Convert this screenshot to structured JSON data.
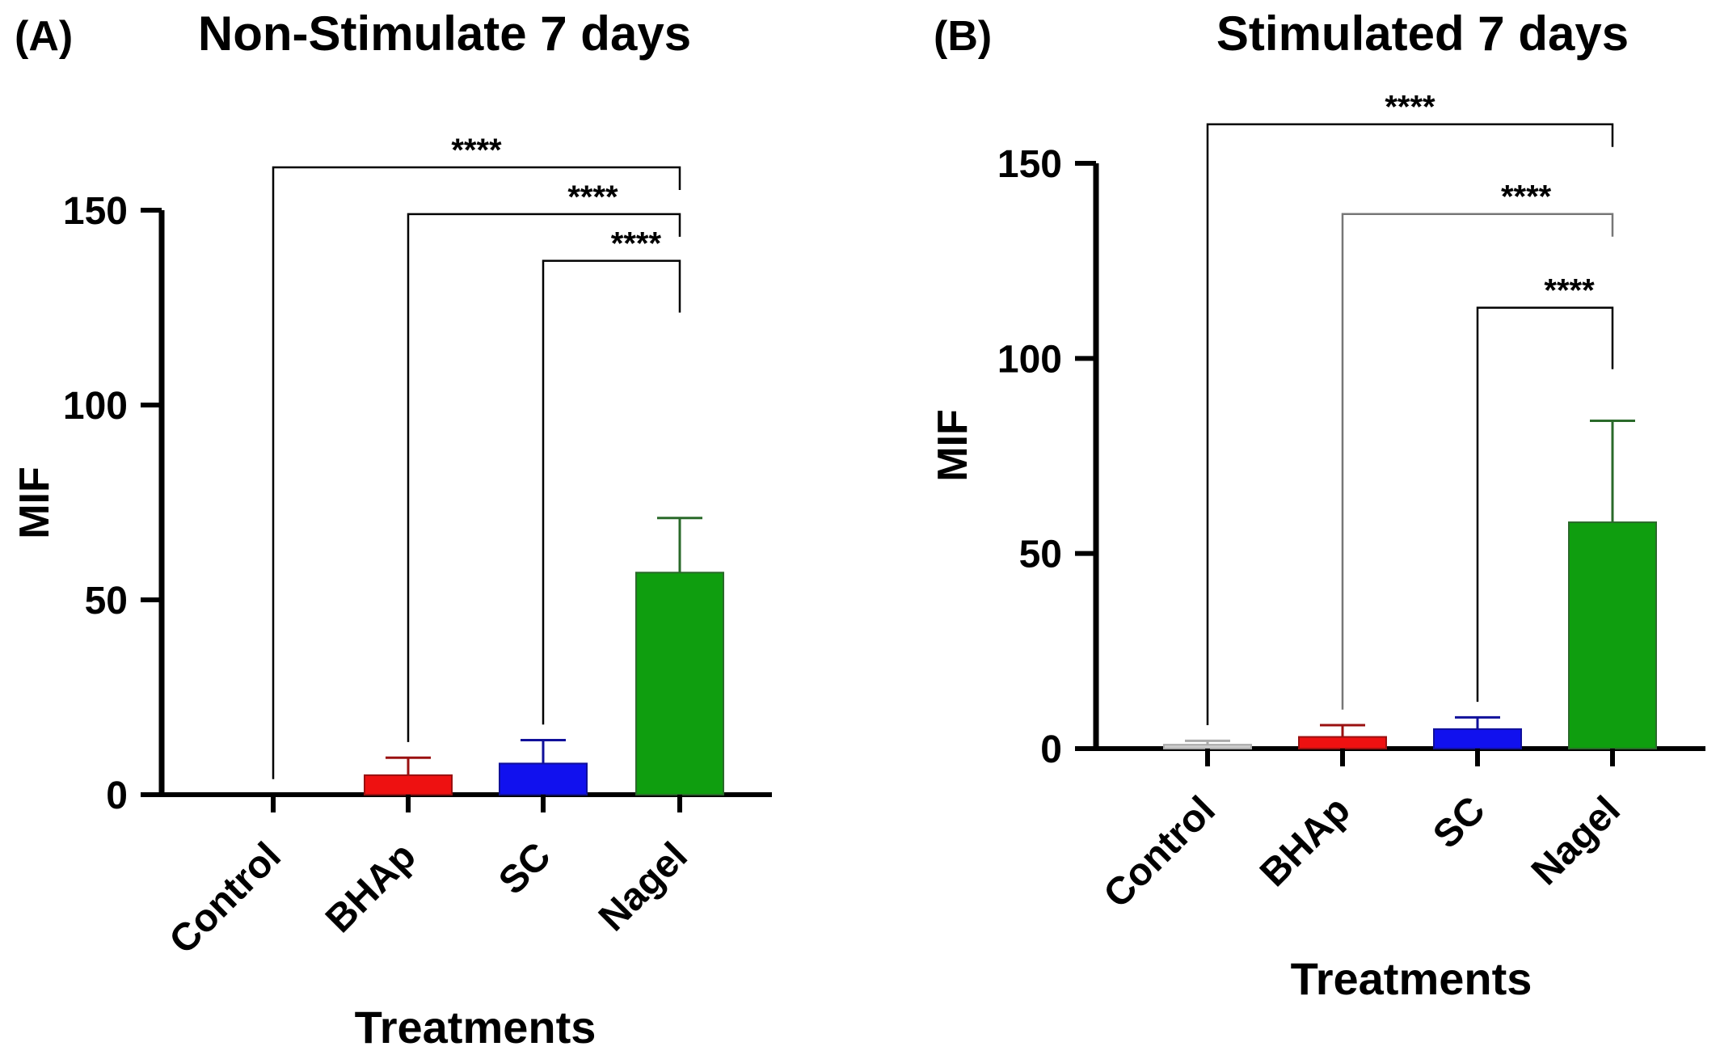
{
  "chart_data": [
    {
      "type": "bar",
      "panel_label": "(A)",
      "title": "Non-Stimulate 7 days",
      "xlabel": "Treatments",
      "ylabel": "MIF",
      "categories": [
        "Control",
        "BHAp",
        "SC",
        "Nagel"
      ],
      "values": [
        0,
        5,
        8,
        57
      ],
      "error_upper": [
        0,
        9.5,
        14,
        71
      ],
      "ylim": [
        0,
        150
      ],
      "yticks": [
        "0",
        "50",
        "100",
        "150"
      ],
      "grid": false,
      "bar_colors": [
        "#808080",
        "#ee1111",
        "#1111ee",
        "#0f9e0f"
      ],
      "error_colors": [
        "#000000",
        "#9a1010",
        "#10109a",
        "#2a6a2a"
      ],
      "significance": [
        {
          "from": "Control",
          "to": "Nagel",
          "label": "****",
          "y": 161
        },
        {
          "from": "BHAp",
          "to": "Nagel",
          "label": "****",
          "y": 149
        },
        {
          "from": "SC",
          "to": "Nagel",
          "label": "****",
          "y": 137
        }
      ]
    },
    {
      "type": "bar",
      "panel_label": "(B)",
      "title": "Stimulated 7 days",
      "xlabel": "Treatments",
      "ylabel": "MIF",
      "categories": [
        "Control",
        "BHAp",
        "SC",
        "Nagel"
      ],
      "values": [
        1,
        3,
        5,
        58
      ],
      "error_upper": [
        2,
        6,
        8,
        84
      ],
      "ylim": [
        0,
        150
      ],
      "yticks": [
        "0",
        "50",
        "100",
        "150"
      ],
      "grid": false,
      "bar_colors": [
        "#cccccc",
        "#ee1111",
        "#1111ee",
        "#0f9e0f"
      ],
      "error_colors": [
        "#aaaaaa",
        "#9a1010",
        "#10109a",
        "#2a6a2a"
      ],
      "significance": [
        {
          "from": "Control",
          "to": "Nagel",
          "label": "****",
          "y": 160
        },
        {
          "from": "BHAp",
          "to": "Nagel",
          "label": "****",
          "y": 137
        },
        {
          "from": "SC",
          "to": "Nagel",
          "label": "****",
          "y": 113
        }
      ]
    }
  ]
}
